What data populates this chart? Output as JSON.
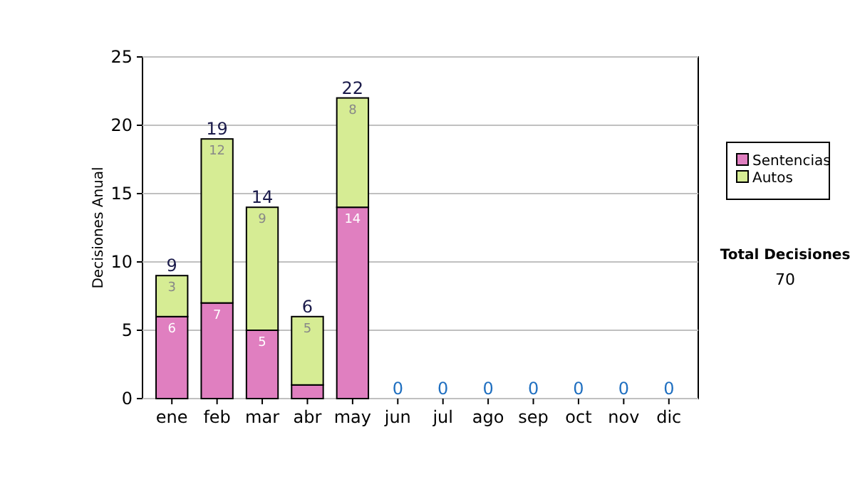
{
  "chart_data": {
    "type": "bar",
    "stacked": true,
    "ylabel": "Decisiones Anual",
    "categories": [
      "ene",
      "feb",
      "mar",
      "abr",
      "may",
      "jun",
      "jul",
      "ago",
      "sep",
      "oct",
      "nov",
      "dic"
    ],
    "series": [
      {
        "name": "Sentencias",
        "color": "#e07fc0",
        "values": [
          6,
          7,
          5,
          1,
          14,
          0,
          0,
          0,
          0,
          0,
          0,
          0
        ],
        "value_labels": [
          "6",
          "7",
          "5",
          null,
          "14",
          null,
          null,
          null,
          null,
          null,
          null,
          null
        ]
      },
      {
        "name": "Autos",
        "color": "#d6ec94",
        "values": [
          3,
          12,
          9,
          5,
          8,
          0,
          0,
          0,
          0,
          0,
          0,
          0
        ],
        "value_labels": [
          "3",
          "12",
          "9",
          "5",
          "8",
          null,
          null,
          null,
          null,
          null,
          null,
          null
        ]
      }
    ],
    "totals": [
      "9",
      "19",
      "14",
      "6",
      "22",
      "0",
      "0",
      "0",
      "0",
      "0",
      "0",
      "0"
    ],
    "ylim": [
      0,
      25
    ],
    "yticks": [
      0,
      5,
      10,
      15,
      20,
      25
    ],
    "grid": "y",
    "legend": "right",
    "annotations": [
      "Total Decisiones",
      "70"
    ]
  }
}
